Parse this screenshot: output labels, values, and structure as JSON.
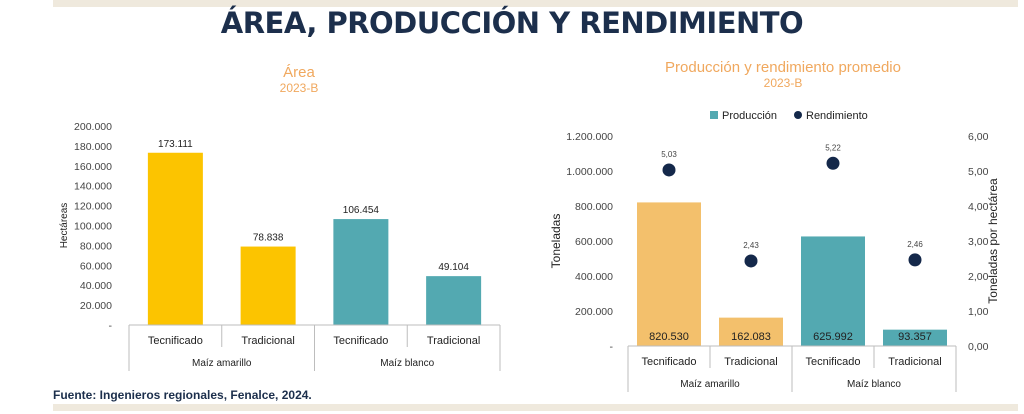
{
  "page": {
    "title": "ÁREA, PRODUCCIÓN Y RENDIMIENTO",
    "source": "Fuente: Ingenieros regionales, Fenalce, 2024."
  },
  "colors": {
    "title": "#1c2f4c",
    "chart_title": "#f0a85e",
    "yellow": "#fcc400",
    "teal": "#53a9b1",
    "light_orange": "#f3c06c",
    "dot": "#14284a",
    "axis_text": "#444444"
  },
  "chart_data": [
    {
      "type": "bar",
      "title": "Área",
      "subtitle": "2023-B",
      "ylabel": "Hectáreas",
      "ylim": [
        0,
        200000
      ],
      "yticks": [
        0,
        20000,
        40000,
        60000,
        80000,
        100000,
        120000,
        140000,
        160000,
        180000,
        200000
      ],
      "ytick_labels": [
        "-",
        "20.000",
        "40.000",
        "60.000",
        "80.000",
        "100.000",
        "120.000",
        "140.000",
        "160.000",
        "180.000",
        "200.000"
      ],
      "categories": [
        "Tecnificado",
        "Tradicional",
        "Tecnificado",
        "Tradicional"
      ],
      "groups": [
        {
          "label": "Maíz amarillo",
          "span": [
            0,
            1
          ]
        },
        {
          "label": "Maíz blanco",
          "span": [
            2,
            3
          ]
        }
      ],
      "values": [
        173111,
        78838,
        106454,
        49104
      ],
      "value_labels": [
        "173.111",
        "78.838",
        "106.454",
        "49.104"
      ],
      "bar_colors": [
        "yellow",
        "yellow",
        "teal",
        "teal"
      ]
    },
    {
      "type": "bar+scatter",
      "title": "Producción y rendimiento promedio",
      "subtitle": "2023-B",
      "legend": [
        "Producción",
        "Rendimiento"
      ],
      "legend_position": "top",
      "ylabel": "Toneladas",
      "ylabel_right": "Toneladas por hectárea",
      "ylim": [
        0,
        1200000
      ],
      "ylim_right": [
        0,
        6
      ],
      "yticks": [
        0,
        200000,
        400000,
        600000,
        800000,
        1000000,
        1200000
      ],
      "ytick_labels": [
        "-",
        "200.000",
        "400.000",
        "600.000",
        "800.000",
        "1.000.000",
        "1.200.000"
      ],
      "yticks_right": [
        0,
        1,
        2,
        3,
        4,
        5,
        6
      ],
      "ytick_labels_right": [
        "0,00",
        "1,00",
        "2,00",
        "3,00",
        "4,00",
        "5,00",
        "6,00"
      ],
      "categories": [
        "Tecnificado",
        "Tradicional",
        "Tecnificado",
        "Tradicional"
      ],
      "groups": [
        {
          "label": "Maíz amarillo",
          "span": [
            0,
            1
          ]
        },
        {
          "label": "Maíz blanco",
          "span": [
            2,
            3
          ]
        }
      ],
      "series": [
        {
          "name": "Producción",
          "values": [
            820530,
            162083,
            625992,
            93357
          ],
          "value_labels": [
            "820.530",
            "162.083",
            "625.992",
            "93.357"
          ],
          "bar_colors": [
            "light_orange",
            "light_orange",
            "teal",
            "teal"
          ]
        },
        {
          "name": "Rendimiento",
          "axis": "right",
          "values": [
            5.03,
            2.43,
            5.22,
            2.46
          ],
          "value_labels": [
            "5,03",
            "2,43",
            "5,22",
            "2,46"
          ]
        }
      ]
    }
  ]
}
